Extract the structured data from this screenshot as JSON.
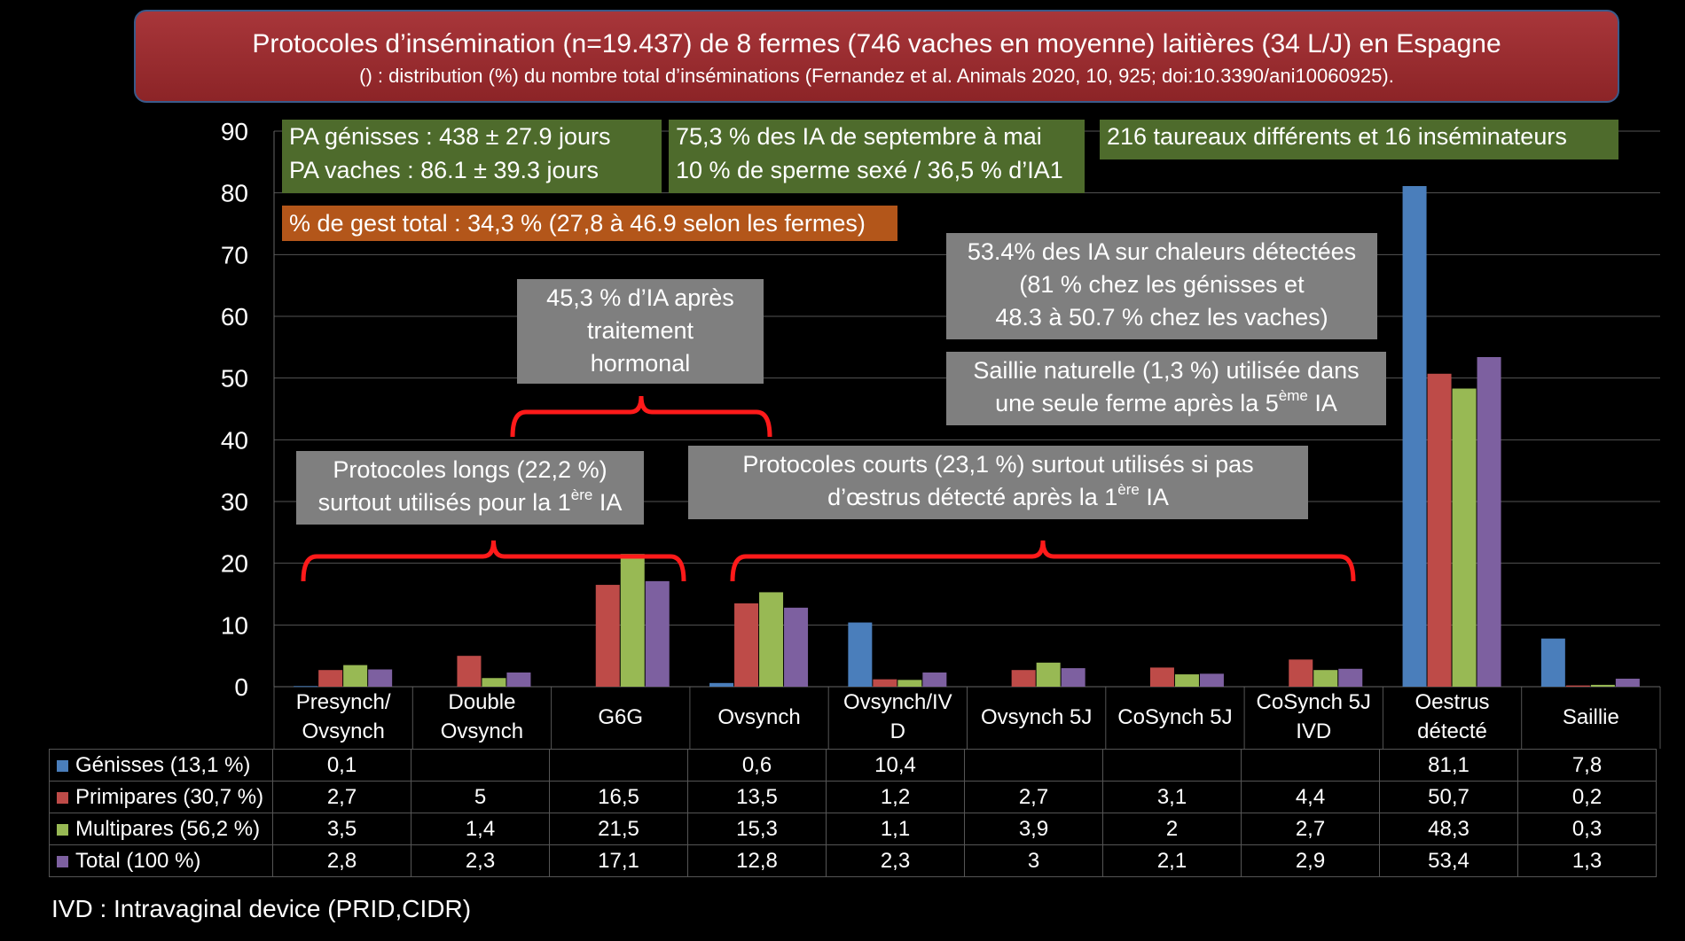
{
  "title": {
    "main": "Protocoles d’insémination (n=19.437) de 8 fermes (746 vaches en moyenne) laitières (34 L/J) en Espagne",
    "sub": "() : distribution  (%) du nombre total d’inséminations   (Fernandez et al. Animals 2020, 10, 925; doi:10.3390/ani10060925)."
  },
  "boxes": {
    "pa_line1": "PA génisses : 438 ± 27.9 jours",
    "pa_line2": "PA vaches :  86.1 ± 39.3 jours",
    "ia_line1": "75,3 % des IA de septembre à mai",
    "ia_line2": "10 % de sperme sexé / 36,5 % d’IA1",
    "taureaux": "216 taureaux différents et 16 inséminateurs",
    "gest": "% de gest total : 34,3 % (27,8 à 46.9 selon les fermes)",
    "hormonal_line1": "45,3 % d’IA après",
    "hormonal_line2": "traitement",
    "hormonal_line3": "hormonal",
    "chaleurs_line1": "53.4% des IA sur chaleurs détectées",
    "chaleurs_line2": "(81 % chez les génisses et",
    "chaleurs_line3": "48.3 à 50.7 % chez les vaches)",
    "saillie_line1": "Saillie naturelle  (1,3 %) utilisée dans",
    "saillie_line2_pre": "une seule ferme après la 5",
    "saillie_line2_sup": "ème",
    "saillie_line2_post": " IA",
    "longs_line1": "Protocoles longs (22,2 %)",
    "longs_line2_pre": "surtout utilisés pour la 1",
    "longs_line2_sup": "ère",
    "longs_line2_post": " IA",
    "courts_line1": "Protocoles courts (23,1 %) surtout utilisés si pas",
    "courts_line2_pre": "d’œstrus détecté après la 1",
    "courts_line2_sup": "ère",
    "courts_line2_post": " IA"
  },
  "footnote": "IVD : Intravaginal device (PRID,CIDR)",
  "colors": {
    "genisses": "#4a7ebb",
    "primipares": "#be4b48",
    "multipares": "#98b954",
    "total": "#7d60a0",
    "bracket": "#ff1a1a"
  },
  "chart_data": {
    "type": "bar",
    "ylim": [
      0,
      90
    ],
    "yticks": [
      0,
      10,
      20,
      30,
      40,
      50,
      60,
      70,
      80,
      90
    ],
    "grid": true,
    "categories": [
      [
        "Presynch/",
        "Ovsynch"
      ],
      [
        "Double",
        "Ovsynch"
      ],
      [
        "G6G"
      ],
      [
        "Ovsynch"
      ],
      [
        "Ovsynch/IV",
        "D"
      ],
      [
        "Ovsynch 5J"
      ],
      [
        "CoSynch 5J"
      ],
      [
        "CoSynch 5J",
        "IVD"
      ],
      [
        "Oestrus",
        "détecté"
      ],
      [
        "Saillie"
      ]
    ],
    "series": [
      {
        "name": "Génisses (13,1 %)",
        "values": [
          0.1,
          null,
          null,
          0.6,
          10.4,
          null,
          null,
          null,
          81.1,
          7.8
        ],
        "labels": [
          "0,1",
          "",
          "",
          "0,6",
          "10,4",
          "",
          "",
          "",
          "81,1",
          "7,8"
        ]
      },
      {
        "name": "Primipares (30,7 %)",
        "values": [
          2.7,
          5,
          16.5,
          13.5,
          1.2,
          2.7,
          3.1,
          4.4,
          50.7,
          0.2
        ],
        "labels": [
          "2,7",
          "5",
          "16,5",
          "13,5",
          "1,2",
          "2,7",
          "3,1",
          "4,4",
          "50,7",
          "0,2"
        ]
      },
      {
        "name": "Multipares (56,2 %)",
        "values": [
          3.5,
          1.4,
          21.5,
          15.3,
          1.1,
          3.9,
          2,
          2.7,
          48.3,
          0.3
        ],
        "labels": [
          "3,5",
          "1,4",
          "21,5",
          "15,3",
          "1,1",
          "3,9",
          "2",
          "2,7",
          "48,3",
          "0,3"
        ]
      },
      {
        "name": "Total (100 %)",
        "values": [
          2.8,
          2.3,
          17.1,
          12.8,
          2.3,
          3,
          2.1,
          2.9,
          53.4,
          1.3
        ],
        "labels": [
          "2,8",
          "2,3",
          "17,1",
          "12,8",
          "2,3",
          "3",
          "2,1",
          "2,9",
          "53,4",
          "1,3"
        ]
      }
    ]
  }
}
